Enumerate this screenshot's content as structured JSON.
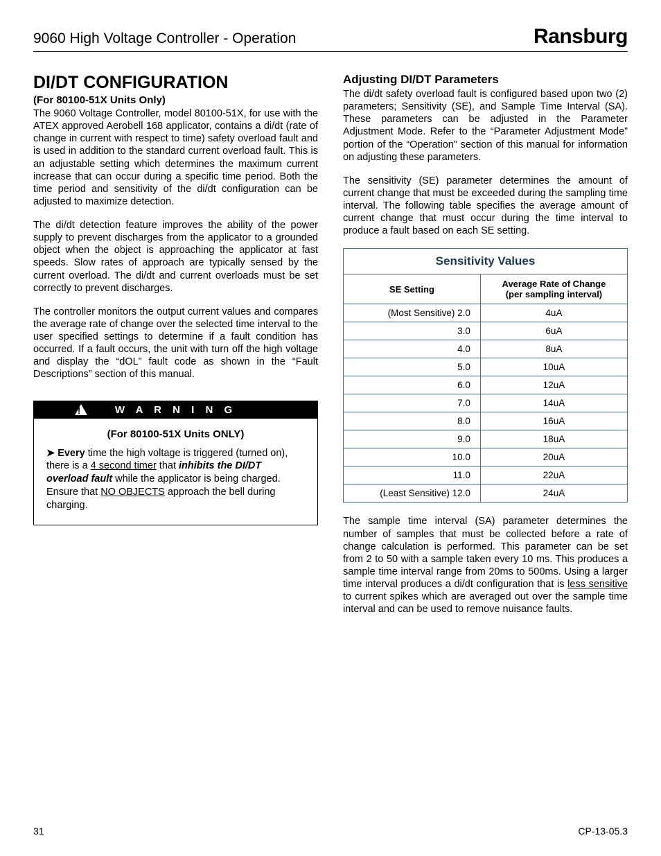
{
  "header": {
    "left": "9060 High Voltage Controller - Operation",
    "brand": "Ransburg"
  },
  "left_col": {
    "heading": "DI/DT CONFIGURATION",
    "subheading": "(For 80100-51X Units Only)",
    "p1": "The 9060 Voltage Controller, model 80100-51X, for use with the ATEX approved Aerobell 168 applicator, contains a di/dt (rate of change in current with respect to time) safety overload fault and is used in addition to the standard current overload fault.  This is an adjustable setting which determines the maximum current increase that can occur during a specific time period.  Both the time period and sensitivity of the di/dt configuration can be adjusted to maximize detection.",
    "p2": "The di/dt detection feature improves the ability of the power supply to prevent discharges from the applicator to a grounded object when the object is approaching the applicator at fast speeds.  Slow rates of approach are typically sensed by the current overload.  The di/dt and current overloads must be set correctly to prevent discharges.",
    "p3": "The controller monitors the output current values and compares the average rate of change over the selected time interval to the user specified settings to determine if a fault condition has occurred.  If a fault occurs, the unit with turn off the high voltage and display the “dOL” fault code as shown in the “Fault Descriptions” section of this manual.",
    "warning": {
      "label": "W A R N I N G",
      "sub": "(For 80100-51X Units ONLY)",
      "arrow": "➤",
      "t1_bold": "Every",
      "t1_a": " time the high voltage is triggered (turned on), there is a ",
      "t1_u": "4 second timer",
      "t1_b": " that ",
      "t1_bi": "inhibits the DI/DT overload fault",
      "t1_c": " while the applicator is being charged.  Ensure that ",
      "t1_u2": "NO OBJECTS",
      "t1_d": " approach the bell during charging."
    }
  },
  "right_col": {
    "heading": "Adjusting DI/DT Parameters",
    "p1": "The di/dt safety overload fault is configured based upon two (2) parameters; Sensitivity (SE), and Sample Time Interval (SA).  These parameters can be adjusted in the Parameter Adjustment Mode.  Refer to the “Parameter Adjustment Mode” portion of the “Operation” section of this manual for information on adjusting these parameters.",
    "p2": "The sensitivity (SE) parameter determines the amount of current change that must be exceeded during the sampling time interval.  The following table specifies the average amount of current change that must occur during the time interval to produce a fault based on each SE setting.",
    "table": {
      "title": "Sensitivity Values",
      "col1": "SE Setting",
      "col2a": "Average Rate of Change",
      "col2b": "(per sampling interval)",
      "rows": [
        {
          "se": "(Most Sensitive) 2.0",
          "rate": "4uA"
        },
        {
          "se": "3.0",
          "rate": "6uA"
        },
        {
          "se": "4.0",
          "rate": "8uA"
        },
        {
          "se": "5.0",
          "rate": "10uA"
        },
        {
          "se": "6.0",
          "rate": "12uA"
        },
        {
          "se": "7.0",
          "rate": "14uA"
        },
        {
          "se": "8.0",
          "rate": "16uA"
        },
        {
          "se": "9.0",
          "rate": "18uA"
        },
        {
          "se": "10.0",
          "rate": "20uA"
        },
        {
          "se": "11.0",
          "rate": "22uA"
        },
        {
          "se": "(Least Sensitive) 12.0",
          "rate": "24uA"
        }
      ]
    },
    "p3a": "The sample time interval (SA) parameter determines the number of samples that must be collected before a rate of change calculation is performed.  This parameter can be set from 2 to 50 with a sample taken every 10 ms. This produces a sample time interval range from 20ms to 500ms.  Using a larger time  interval produces a di/dt configuration that is ",
    "p3u": "less sensitive",
    "p3b": " to current spikes which are averaged out over the sample time interval and can be used to remove nuisance faults."
  },
  "footer": {
    "page": "31",
    "doc": "CP-13-05.3"
  },
  "colors": {
    "table_border": "#4a6a8a",
    "table_title": "#1a3a5a"
  }
}
